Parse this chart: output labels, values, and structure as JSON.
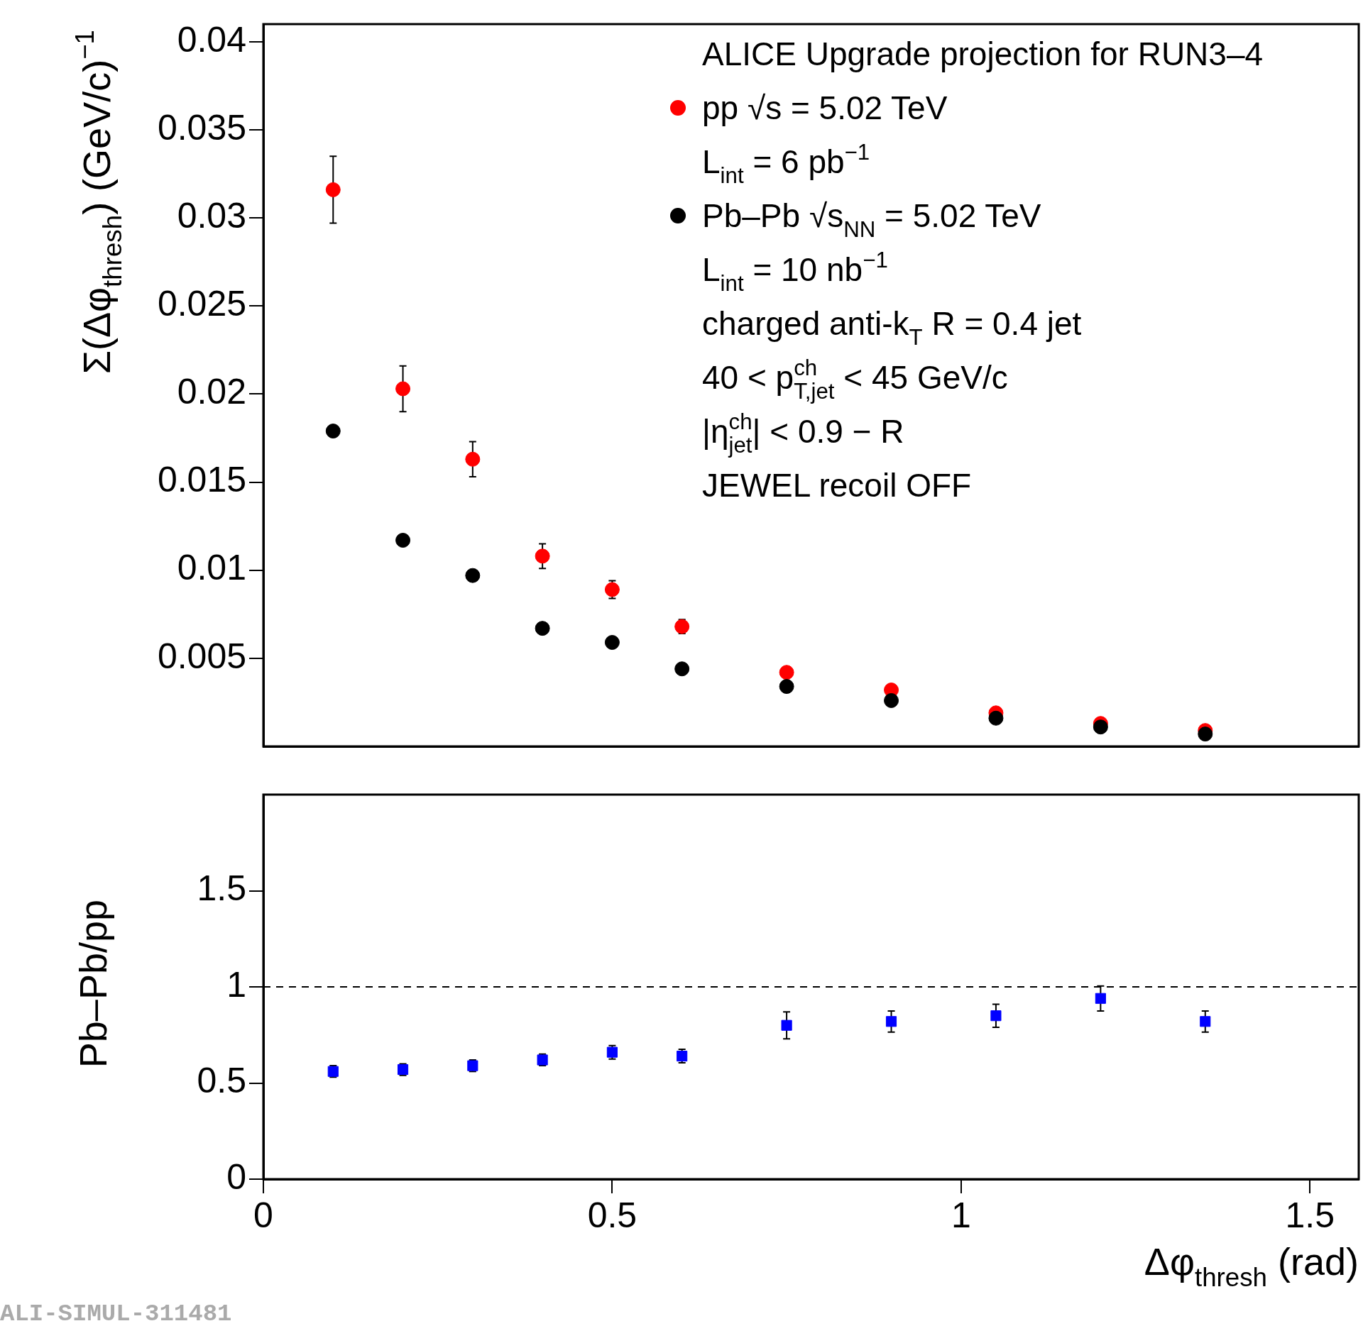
{
  "chart_data": [
    {
      "type": "scatter",
      "ylabel": "Σ(Δφ$_{thresh}$) (GeV/c)$^{−1}$",
      "legend": "top right",
      "legend_title": "ALICE Upgrade projection for RUN3–4",
      "marker": "circle",
      "x": [
        0.1,
        0.2,
        0.3,
        0.4,
        0.5,
        0.6,
        0.75,
        0.9,
        1.05,
        1.2,
        1.35
      ],
      "series": [
        {
          "name": "pp √s = 5.02 TeV",
          "color": "#ff0000",
          "values": [
            0.0316,
            0.0203,
            0.0163,
            0.0108,
            0.0089,
            0.0068,
            0.0042,
            0.0032,
            0.0019,
            0.0013,
            0.0009
          ],
          "errors": [
            0.0019,
            0.0013,
            0.001,
            0.0007,
            0.0005,
            0.0004,
            null,
            null,
            null,
            null,
            null
          ]
        },
        {
          "name": "Pb–Pb √s$_{NN}$ = 5.02 TeV",
          "color": "#000000",
          "values": [
            0.0179,
            0.0117,
            0.0097,
            0.0067,
            0.0059,
            0.0044,
            0.0034,
            0.0026,
            0.0016,
            0.0011,
            0.0007
          ]
        }
      ],
      "annotations": [
        "L$_{int}$ = 6 pb$^{−1}$",
        "L$_{int}$ = 10 nb$^{−1}$",
        "charged anti-k$_{T}$ R = 0.4 jet",
        "40 < p$^{ch}$$_{T,jet}$ < 45 GeV/c",
        "|η$^{ch}$$_{jet}$| < 0.9 − R",
        "JEWEL recoil OFF"
      ],
      "xlim": [
        0,
        1.57
      ],
      "ylim": [
        0,
        0.041
      ],
      "yticks": [
        0.005,
        0.01,
        0.015,
        0.02,
        0.025,
        0.03,
        0.035,
        0.04
      ],
      "tick_labels": "y"
    },
    {
      "type": "scatter",
      "ylabel": "Pb–Pb/pp",
      "xlabel": "Δφ$_{thresh}$ (rad)",
      "marker": "square",
      "x": [
        0.1,
        0.2,
        0.3,
        0.4,
        0.5,
        0.6,
        0.75,
        0.9,
        1.05,
        1.2,
        1.35
      ],
      "series": [
        {
          "color": "#0000ff",
          "values": [
            0.56,
            0.57,
            0.59,
            0.62,
            0.66,
            0.64,
            0.8,
            0.82,
            0.85,
            0.94,
            0.82
          ],
          "errors": [
            0.03,
            0.03,
            0.03,
            0.03,
            0.035,
            0.035,
            0.07,
            0.055,
            0.06,
            0.065,
            0.055
          ]
        }
      ],
      "ref_lines": [
        {
          "axis": "y",
          "value": 1,
          "color": "#000000",
          "line_style": "dashed"
        }
      ],
      "annotations": [
        "ALI-SIMUL-311481"
      ],
      "xlim": [
        0,
        1.57
      ],
      "xticks": [
        0,
        0.5,
        1,
        1.5
      ],
      "ylim": [
        0,
        2
      ],
      "yticks": [
        0,
        0.5,
        1,
        1.5
      ]
    }
  ]
}
